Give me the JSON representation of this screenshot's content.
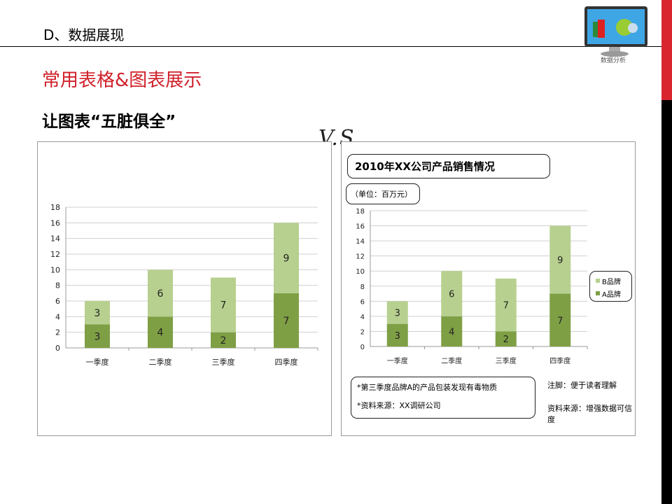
{
  "header": {
    "section": "D、数据展现",
    "subtitle": "常用表格&图表展示",
    "heading": "让图表“五脏俱全”",
    "vs": "V.S"
  },
  "logo": {
    "caption": "数据分析"
  },
  "colors": {
    "brand_a": "#7f9f45",
    "brand_b": "#b7d08f",
    "accent": "#d0202a"
  },
  "right_panel": {
    "title": "2010年XX公司产品销售情况",
    "unit": "（单位：百万元）",
    "notes": [
      "*第三季度品牌A的产品包装发现有毒物质",
      "*资料来源：XX调研公司"
    ],
    "annotations": [
      "注脚：便于读者理解",
      "资料来源：增强数据可信度"
    ]
  },
  "chart_data": [
    {
      "type": "bar",
      "stacked": true,
      "title": "",
      "categories": [
        "一季度",
        "二季度",
        "三季度",
        "四季度"
      ],
      "series": [
        {
          "values": [
            3,
            4,
            2,
            7
          ]
        },
        {
          "values": [
            3,
            6,
            7,
            9
          ]
        }
      ],
      "ylim": [
        0,
        18
      ],
      "yticks": [
        0,
        2,
        4,
        6,
        8,
        10,
        12,
        14,
        16,
        18
      ],
      "grid": true,
      "legend": "none",
      "data_labels": true
    },
    {
      "type": "bar",
      "stacked": true,
      "title": "2010年XX公司产品销售情况",
      "categories": [
        "一季度",
        "二季度",
        "三季度",
        "四季度"
      ],
      "series": [
        {
          "name": "A品牌",
          "values": [
            3,
            4,
            2,
            7
          ]
        },
        {
          "name": "B品牌",
          "values": [
            3,
            6,
            7,
            9
          ]
        }
      ],
      "ylim": [
        0,
        18
      ],
      "yticks": [
        0,
        2,
        4,
        6,
        8,
        10,
        12,
        14,
        16,
        18
      ],
      "grid": true,
      "legend": "right",
      "data_labels": true
    }
  ]
}
